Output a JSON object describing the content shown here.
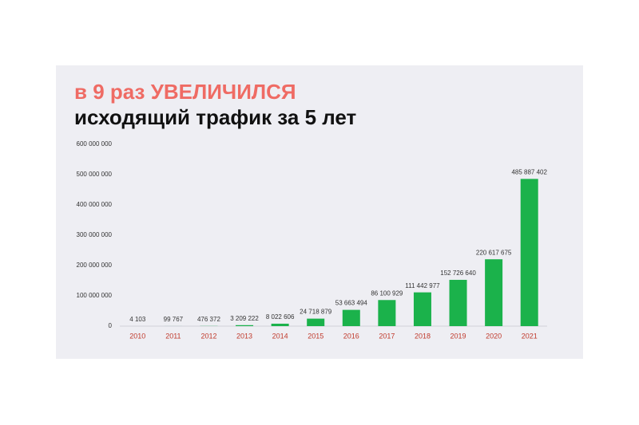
{
  "chart_data": {
    "type": "bar",
    "title": "в 9 раз УВЕЛИЧИЛСЯ",
    "subtitle": "исходящий трафик за 5 лет",
    "categories": [
      "2010",
      "2011",
      "2012",
      "2013",
      "2014",
      "2015",
      "2016",
      "2017",
      "2018",
      "2019",
      "2020",
      "2021"
    ],
    "values": [
      4103,
      99767,
      476372,
      3209222,
      8022606,
      24718879,
      53663494,
      86100929,
      111442977,
      152726640,
      220617675,
      485887402
    ],
    "value_labels": [
      "4 103",
      "99 767",
      "476 372",
      "3 209 222",
      "8 022 606",
      "24 718 879",
      "53 663 494",
      "86 100 929",
      "111 442 977",
      "152 726 640",
      "220 617 675",
      "485 887 402"
    ],
    "color": "#1bb24b",
    "category_color": "#c0392b",
    "ylim": [
      0,
      600000000
    ],
    "yticks": [
      0,
      {
        "value": 100000000,
        "label": "100 000 000"
      },
      {
        "value": 200000000,
        "label": "200 000 000"
      },
      {
        "value": 300000000,
        "label": "300 000 000"
      },
      {
        "value": 400000000,
        "label": "400 000 000"
      },
      {
        "value": 500000000,
        "label": "500 000 000"
      },
      {
        "value": 600000000,
        "label": "600 000 000"
      }
    ],
    "grid": false
  }
}
